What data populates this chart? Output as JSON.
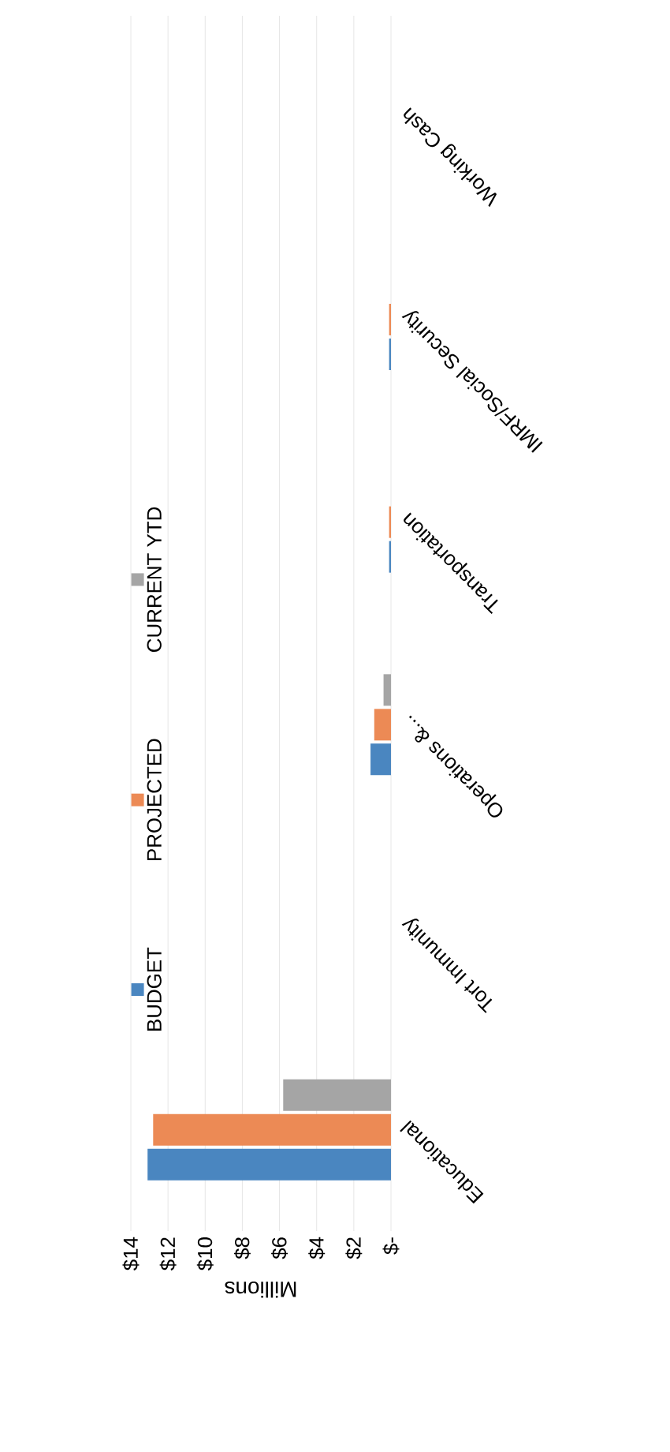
{
  "chart_data": {
    "type": "bar",
    "orientation": "horizontal",
    "categories": [
      "Working Cash",
      "IMRF/Social Security",
      "Transportation",
      "Operations &...",
      "Tort Immunity",
      "Educational"
    ],
    "series": [
      {
        "name": "BUDGET",
        "color": "#4a86c0",
        "values": [
          0,
          0.1,
          0.1,
          1.1,
          0,
          13.1
        ]
      },
      {
        "name": "PROJECTED",
        "color": "#ec8a55",
        "values": [
          0,
          0.1,
          0.1,
          0.9,
          0,
          12.8
        ]
      },
      {
        "name": "CURRENT YTD",
        "color": "#a5a5a5",
        "values": [
          0,
          null,
          null,
          0.4,
          0,
          5.8
        ]
      }
    ],
    "xlabel": "Millions",
    "xlim": [
      14,
      0
    ],
    "xticks": [
      {
        "value": 14,
        "label": "$14"
      },
      {
        "value": 12,
        "label": "$12"
      },
      {
        "value": 10,
        "label": "$10"
      },
      {
        "value": 8,
        "label": "$8"
      },
      {
        "value": 6,
        "label": "$6"
      },
      {
        "value": 4,
        "label": "$4"
      },
      {
        "value": 2,
        "label": "$2"
      },
      {
        "value": 0,
        "label": "$-"
      }
    ],
    "grid": "x",
    "legend": "left"
  }
}
